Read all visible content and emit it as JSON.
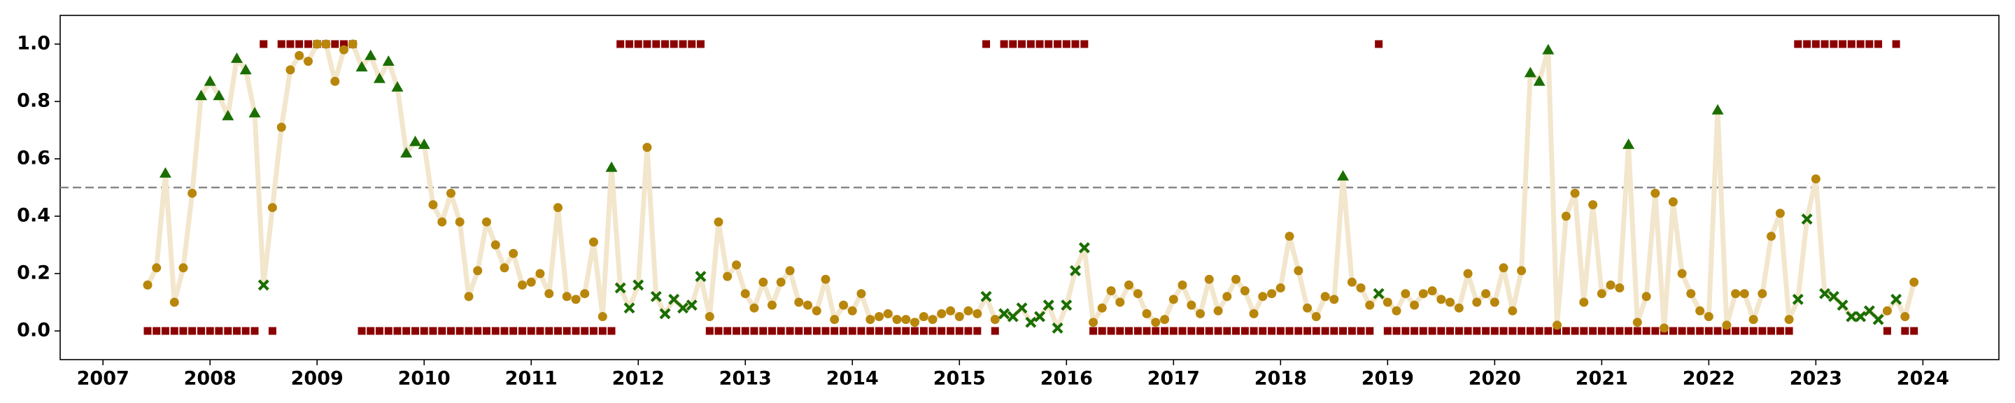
{
  "chart_data": {
    "type": "line",
    "x": [
      2007.417,
      2007.5,
      2007.583,
      2007.667,
      2007.75,
      2007.833,
      2007.917,
      2008,
      2008.083,
      2008.167,
      2008.25,
      2008.333,
      2008.417,
      2008.5,
      2008.583,
      2008.667,
      2008.75,
      2008.833,
      2008.917,
      2009,
      2009.083,
      2009.167,
      2009.25,
      2009.333,
      2009.417,
      2009.5,
      2009.583,
      2009.667,
      2009.75,
      2009.833,
      2009.917,
      2010,
      2010.083,
      2010.167,
      2010.25,
      2010.333,
      2010.417,
      2010.5,
      2010.583,
      2010.667,
      2010.75,
      2010.833,
      2010.917,
      2011,
      2011.083,
      2011.167,
      2011.25,
      2011.333,
      2011.417,
      2011.5,
      2011.583,
      2011.667,
      2011.75,
      2011.833,
      2011.917,
      2012,
      2012.083,
      2012.167,
      2012.25,
      2012.333,
      2012.417,
      2012.5,
      2012.583,
      2012.667,
      2012.75,
      2012.833,
      2012.917,
      2013,
      2013.083,
      2013.167,
      2013.25,
      2013.333,
      2013.417,
      2013.5,
      2013.583,
      2013.667,
      2013.75,
      2013.833,
      2013.917,
      2014,
      2014.083,
      2014.167,
      2014.25,
      2014.333,
      2014.417,
      2014.5,
      2014.583,
      2014.667,
      2014.75,
      2014.833,
      2014.917,
      2015,
      2015.083,
      2015.167,
      2015.25,
      2015.333,
      2015.417,
      2015.5,
      2015.583,
      2015.667,
      2015.75,
      2015.833,
      2015.917,
      2016,
      2016.083,
      2016.167,
      2016.25,
      2016.333,
      2016.417,
      2016.5,
      2016.583,
      2016.667,
      2016.75,
      2016.833,
      2016.917,
      2017,
      2017.083,
      2017.167,
      2017.25,
      2017.333,
      2017.417,
      2017.5,
      2017.583,
      2017.667,
      2017.75,
      2017.833,
      2017.917,
      2018,
      2018.083,
      2018.167,
      2018.25,
      2018.333,
      2018.417,
      2018.5,
      2018.583,
      2018.667,
      2018.75,
      2018.833,
      2018.917,
      2019,
      2019.083,
      2019.167,
      2019.25,
      2019.333,
      2019.417,
      2019.5,
      2019.583,
      2019.667,
      2019.75,
      2019.833,
      2019.917,
      2020,
      2020.083,
      2020.167,
      2020.25,
      2020.333,
      2020.417,
      2020.5,
      2020.583,
      2020.667,
      2020.75,
      2020.833,
      2020.917,
      2021,
      2021.083,
      2021.167,
      2021.25,
      2021.333,
      2021.417,
      2021.5,
      2021.583,
      2021.667,
      2021.75,
      2021.833,
      2021.917,
      2022,
      2022.083,
      2022.167,
      2022.25,
      2022.333,
      2022.417,
      2022.5,
      2022.583,
      2022.667,
      2022.75,
      2022.833,
      2022.917,
      2023,
      2023.083,
      2023.167,
      2023.25,
      2023.333,
      2023.417,
      2023.5,
      2023.583,
      2023.667,
      2023.75,
      2023.833,
      2023.917
    ],
    "series": [
      {
        "color": "#f2e6cc",
        "marker_color": "#b8860b",
        "error_color": "#1a6e00",
        "values": [
          0.16,
          0.22,
          0.55,
          0.1,
          0.22,
          0.48,
          0.82,
          0.87,
          0.82,
          0.75,
          0.95,
          0.91,
          0.76,
          0.16,
          0.43,
          0.71,
          0.91,
          0.96,
          0.94,
          1.0,
          1.0,
          0.87,
          0.98,
          1.0,
          0.92,
          0.96,
          0.88,
          0.94,
          0.85,
          0.62,
          0.66,
          0.65,
          0.44,
          0.38,
          0.48,
          0.38,
          0.12,
          0.21,
          0.38,
          0.3,
          0.22,
          0.27,
          0.16,
          0.17,
          0.2,
          0.13,
          0.43,
          0.12,
          0.11,
          0.13,
          0.31,
          0.05,
          0.57,
          0.15,
          0.08,
          0.16,
          0.64,
          0.12,
          0.06,
          0.11,
          0.08,
          0.09,
          0.19,
          0.05,
          0.38,
          0.19,
          0.23,
          0.13,
          0.08,
          0.17,
          0.09,
          0.17,
          0.21,
          0.1,
          0.09,
          0.07,
          0.18,
          0.04,
          0.09,
          0.07,
          0.13,
          0.04,
          0.05,
          0.06,
          0.04,
          0.04,
          0.03,
          0.05,
          0.04,
          0.06,
          0.07,
          0.05,
          0.07,
          0.06,
          0.12,
          0.04,
          0.06,
          0.05,
          0.08,
          0.03,
          0.05,
          0.09,
          0.01,
          0.09,
          0.21,
          0.29,
          0.03,
          0.08,
          0.14,
          0.1,
          0.16,
          0.13,
          0.06,
          0.03,
          0.04,
          0.11,
          0.16,
          0.09,
          0.06,
          0.18,
          0.07,
          0.12,
          0.18,
          0.14,
          0.06,
          0.12,
          0.13,
          0.15,
          0.33,
          0.21,
          0.08,
          0.05,
          0.12,
          0.11,
          0.54,
          0.17,
          0.15,
          0.09,
          0.13,
          0.1,
          0.07,
          0.13,
          0.09,
          0.13,
          0.14,
          0.11,
          0.1,
          0.08,
          0.2,
          0.1,
          0.13,
          0.1,
          0.22,
          0.07,
          0.21,
          0.9,
          0.87,
          0.98,
          0.02,
          0.4,
          0.48,
          0.1,
          0.44,
          0.13,
          0.16,
          0.15,
          0.65,
          0.03,
          0.12,
          0.48,
          0.01,
          0.45,
          0.2,
          0.13,
          0.07,
          0.05,
          0.77,
          0.02,
          0.13,
          0.13,
          0.04,
          0.13,
          0.33,
          0.41,
          0.04,
          0.11,
          0.39,
          0.53,
          0.13,
          0.12,
          0.09,
          0.05,
          0.05,
          0.07,
          0.04,
          0.07,
          0.11,
          0.05,
          0.17
        ]
      },
      {
        "color": "#8b0000",
        "values": [
          0,
          0,
          0,
          0,
          0,
          0,
          0,
          0,
          0,
          0,
          0,
          0,
          0,
          1,
          0,
          1,
          1,
          1,
          1,
          1,
          1,
          1,
          1,
          1,
          0,
          0,
          0,
          0,
          0,
          0,
          0,
          0,
          0,
          0,
          0,
          0,
          0,
          0,
          0,
          0,
          0,
          0,
          0,
          0,
          0,
          0,
          0,
          0,
          0,
          0,
          0,
          0,
          0,
          1,
          1,
          1,
          1,
          1,
          1,
          1,
          1,
          1,
          1,
          0,
          0,
          0,
          0,
          0,
          0,
          0,
          0,
          0,
          0,
          0,
          0,
          0,
          0,
          0,
          0,
          0,
          0,
          0,
          0,
          0,
          0,
          0,
          0,
          0,
          0,
          0,
          0,
          0,
          0,
          0,
          1,
          0,
          1,
          1,
          1,
          1,
          1,
          1,
          1,
          1,
          1,
          1,
          0,
          0,
          0,
          0,
          0,
          0,
          0,
          0,
          0,
          0,
          0,
          0,
          0,
          0,
          0,
          0,
          0,
          0,
          0,
          0,
          0,
          0,
          0,
          0,
          0,
          0,
          0,
          0,
          0,
          0,
          0,
          0,
          1,
          0,
          0,
          0,
          0,
          0,
          0,
          0,
          0,
          0,
          0,
          0,
          0,
          0,
          0,
          0,
          0,
          0,
          0,
          0,
          0,
          0,
          0,
          0,
          0,
          0,
          0,
          0,
          0,
          0,
          0,
          0,
          0,
          0,
          0,
          0,
          0,
          0,
          0,
          0,
          0,
          0,
          0,
          0,
          0,
          0,
          0,
          1,
          1,
          1,
          1,
          1,
          1,
          1,
          1,
          1,
          1,
          0,
          1,
          0,
          0
        ]
      }
    ],
    "threshold": 0.5,
    "threshold_color": "#888888",
    "xlim": [
      2006.6,
      2024.71
    ],
    "xticks": [
      2007,
      2008,
      2009,
      2010,
      2011,
      2012,
      2013,
      2014,
      2015,
      2016,
      2017,
      2018,
      2019,
      2020,
      2021,
      2022,
      2023,
      2024
    ],
    "ylim": [
      -0.1,
      1.1
    ],
    "yticks": [
      {
        "value": 0,
        "label": "0.0"
      },
      {
        "value": 0.2,
        "label": "0.2"
      },
      {
        "value": 0.4,
        "label": "0.4"
      },
      {
        "value": 0.6,
        "label": "0.6"
      },
      {
        "value": 0.8,
        "label": "0.8"
      },
      {
        "value": 1,
        "label": "1.0"
      }
    ]
  }
}
